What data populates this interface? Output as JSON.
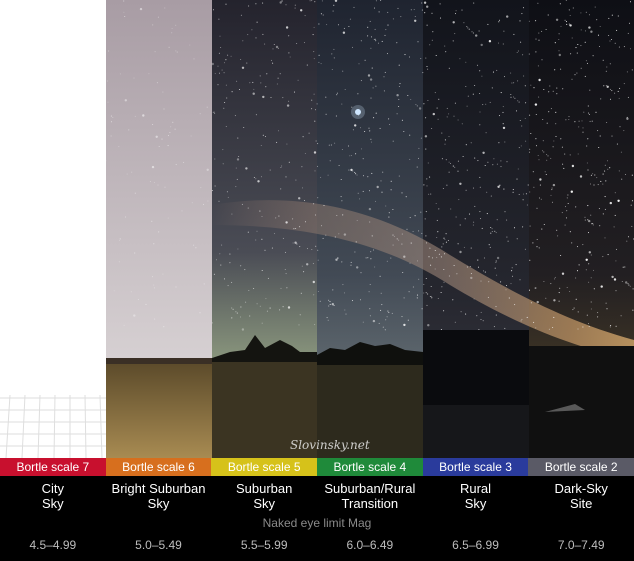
{
  "watermark": "Slovinsky.net",
  "naked_eye_label": "Naked eye limit Mag",
  "panels": [
    {
      "scale": "Bortle scale 7",
      "sky_line1": "City",
      "sky_line2": "Sky",
      "mag": "4.5–4.99",
      "band_color": "#c8102e",
      "sky_top": "#ffffff",
      "sky_bottom": "#ffffff"
    },
    {
      "scale": "Bortle scale 6",
      "sky_line1": "Bright Suburban",
      "sky_line2": "Sky",
      "mag": "5.0–5.49",
      "band_color": "#d76f1e",
      "sky_top": "#b8aab0",
      "sky_bottom": "#d6cfcf"
    },
    {
      "scale": "Bortle scale 5",
      "sky_line1": "Suburban",
      "sky_line2": "Sky",
      "mag": "5.5–5.99",
      "band_color": "#d6c21a",
      "sky_top": "#2a2934",
      "sky_bottom": "#7d8a7d"
    },
    {
      "scale": "Bortle scale 4",
      "sky_line1": "Suburban/Rural",
      "sky_line2": "Transition",
      "mag": "6.0–6.49",
      "band_color": "#1f8a3a",
      "sky_top": "#252a35",
      "sky_bottom": "#5f6d76"
    },
    {
      "scale": "Bortle scale 3",
      "sky_line1": "Rural",
      "sky_line2": "Sky",
      "mag": "6.5–6.99",
      "band_color": "#2a3b9c",
      "sky_top": "#14161d",
      "sky_bottom": "#3c3d45"
    },
    {
      "scale": "Bortle scale 2",
      "sky_line1": "Dark-Sky",
      "sky_line2": "Site",
      "mag": "7.0–7.49",
      "band_color": "#5a5a66",
      "sky_top": "#0f1016",
      "sky_bottom": "#3b3727"
    }
  ]
}
